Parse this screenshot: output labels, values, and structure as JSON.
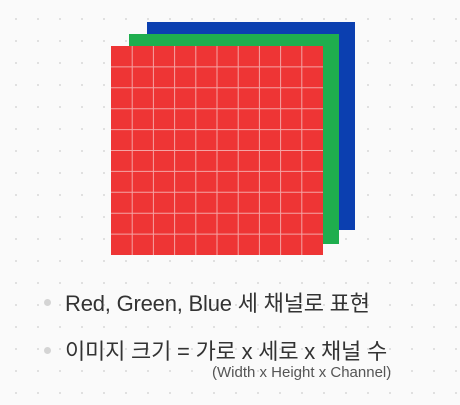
{
  "diagram": {
    "layers": [
      {
        "name": "blue-channel",
        "color": "#0b3fb0"
      },
      {
        "name": "green-channel",
        "color": "#1fae4e"
      },
      {
        "name": "red-channel",
        "color": "#ee3535",
        "grid_line_color": "#f4a3a3",
        "grid_cells": 10
      }
    ]
  },
  "bullets": [
    {
      "text": "Red, Green, Blue 세 채널로 표현"
    },
    {
      "text": "이미지 크기 = 가로 x 세로 x 채널  수"
    }
  ],
  "note": "(Width x Height x Channel)",
  "colors": {
    "bullet_dot": "#d4d4d4",
    "text": "#333333"
  }
}
